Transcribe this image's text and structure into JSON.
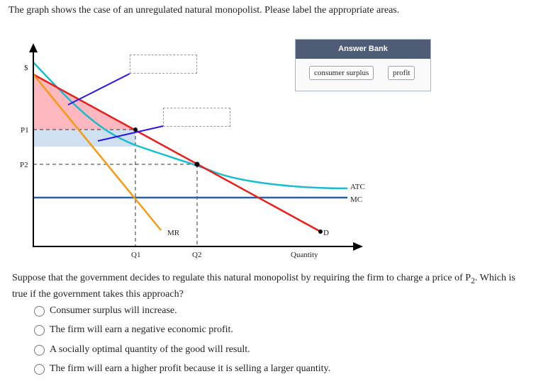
{
  "instructions": "The graph shows the case of an unregulated natural monopolist. Please label the appropriate areas.",
  "graph": {
    "y_axis_label": "$",
    "x_axis_label": "Quantity",
    "price_labels": [
      "P1",
      "P2"
    ],
    "quantity_labels": [
      "Q1",
      "Q2"
    ],
    "curve_labels": {
      "atc": "ATC",
      "mc": "MC",
      "mr": "MR",
      "d": "D"
    },
    "colors": {
      "demand": "#e8201c",
      "mr": "#f49b12",
      "atc": "#19bccd",
      "mc": "#1f64b4",
      "pointer": "#2a16e0",
      "consumer_surplus_area": "#ffb8bf",
      "profit_area": "#cfe0f0"
    }
  },
  "answer_bank": {
    "title": "Answer Bank",
    "items": [
      "consumer surplus",
      "profit"
    ]
  },
  "question": {
    "text_before_subscript": "Suppose that the government decides to regulate this natural monopolist by requiring the firm to charge a price of P",
    "subscript": "2",
    "text_after_subscript": ". Which is true if the government takes this approach?",
    "options": [
      "Consumer surplus will increase.",
      "The firm will earn a negative economic profit.",
      "A socially optimal quantity of the good will result.",
      "The firm will earn a higher profit because it is selling a larger quantity."
    ]
  }
}
